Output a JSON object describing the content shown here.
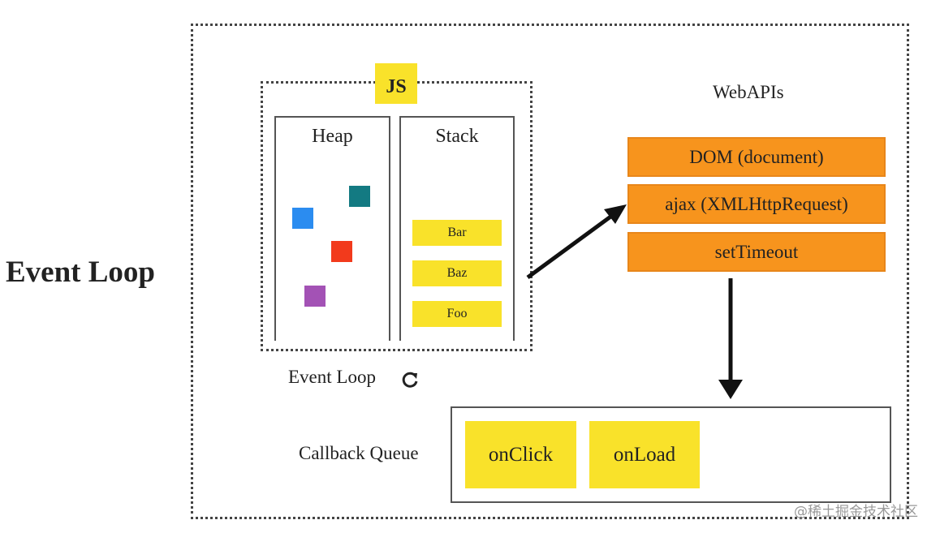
{
  "title": "Event Loop",
  "js_label": "JS",
  "heap": {
    "label": "Heap",
    "objects": [
      {
        "color": "#2b8cf0"
      },
      {
        "color": "#137a82"
      },
      {
        "color": "#f23a1c"
      },
      {
        "color": "#a352b5"
      }
    ]
  },
  "stack": {
    "label": "Stack",
    "frames": [
      "Bar",
      "Baz",
      "Foo"
    ]
  },
  "webapis": {
    "label": "WebAPIs",
    "items": [
      "DOM (document)",
      "ajax (XMLHttpRequest)",
      "setTimeout"
    ]
  },
  "event_loop_label": "Event Loop",
  "callback_queue": {
    "label": "Callback Queue",
    "items": [
      "onClick",
      "onLoad"
    ]
  },
  "watermark": "@稀土掘金技术社区",
  "colors": {
    "yellow": "#f9e22a",
    "orange": "#f7941d"
  }
}
